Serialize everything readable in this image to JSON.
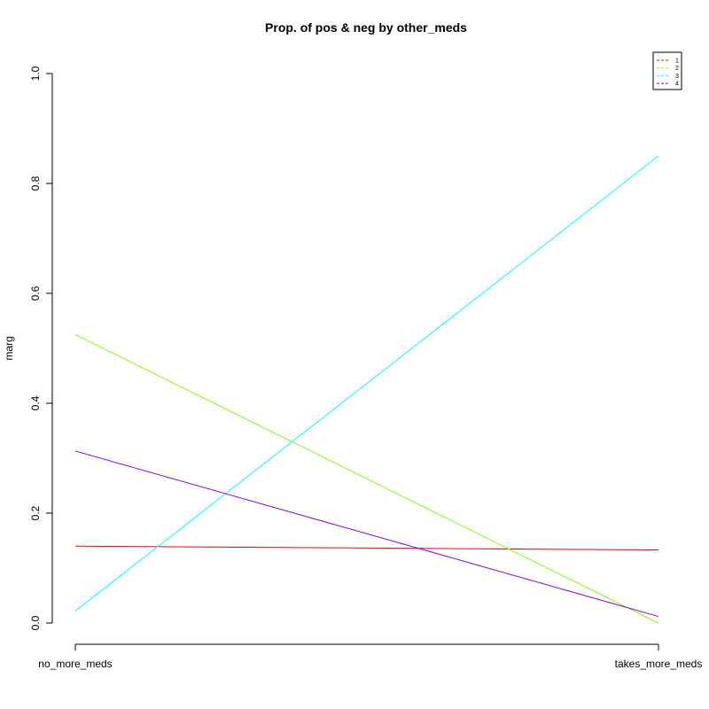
{
  "chart_data": {
    "type": "line",
    "title": "Prop. of pos & neg by other_meds",
    "xlabel": "",
    "ylabel": "marg",
    "categories": [
      "no_more_meds",
      "takes_more_meds"
    ],
    "ylim": [
      0,
      1
    ],
    "yticks": [
      "0.0",
      "0.2",
      "0.4",
      "0.6",
      "0.8",
      "1.0"
    ],
    "ytick_values": [
      0,
      0.2,
      0.4,
      0.6,
      0.8,
      1.0
    ],
    "grid": false,
    "legend_position": "top-right",
    "series": [
      {
        "name": "1",
        "color": "#ff0000",
        "values": [
          0.14,
          0.133
        ]
      },
      {
        "name": "2",
        "color": "#80ff00",
        "values": [
          0.525,
          0.0
        ]
      },
      {
        "name": "3",
        "color": "#00ffff",
        "values": [
          0.022,
          0.85
        ]
      },
      {
        "name": "4",
        "color": "#8000ff",
        "values": [
          0.313,
          0.012
        ]
      }
    ]
  }
}
